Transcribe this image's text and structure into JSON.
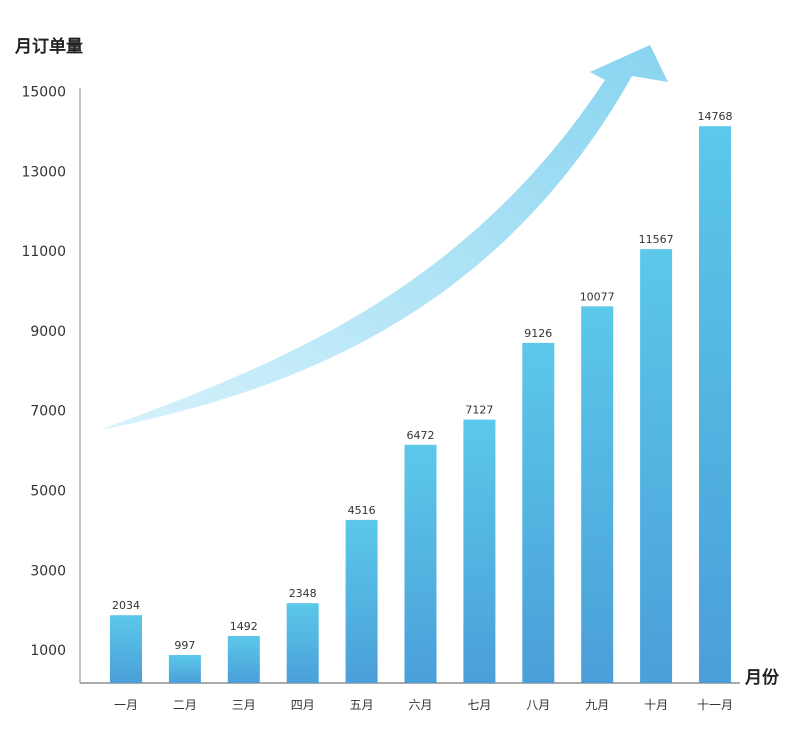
{
  "chart_data": {
    "type": "bar",
    "title": "",
    "ylabel": "月订单量",
    "xlabel": "月份",
    "categories": [
      "一月",
      "二月",
      "三月",
      "四月",
      "五月",
      "六月",
      "七月",
      "八月",
      "九月",
      "十月",
      "十一月"
    ],
    "values": [
      2034,
      997,
      1492,
      2348,
      4516,
      6472,
      7127,
      9126,
      10077,
      11567,
      14768
    ],
    "yticks": [
      1000,
      3000,
      5000,
      7000,
      9000,
      11000,
      13000,
      15000
    ],
    "ylim": [
      0,
      15000
    ],
    "grid": false,
    "annotation": "upward-trend-arrow",
    "colors": {
      "bar_top": "#5cc8ea",
      "bar_bottom": "#4a9fd8",
      "arrow_light": "#c5ecf8",
      "arrow_dark": "#8fd6f0",
      "axis": "#999999"
    }
  }
}
